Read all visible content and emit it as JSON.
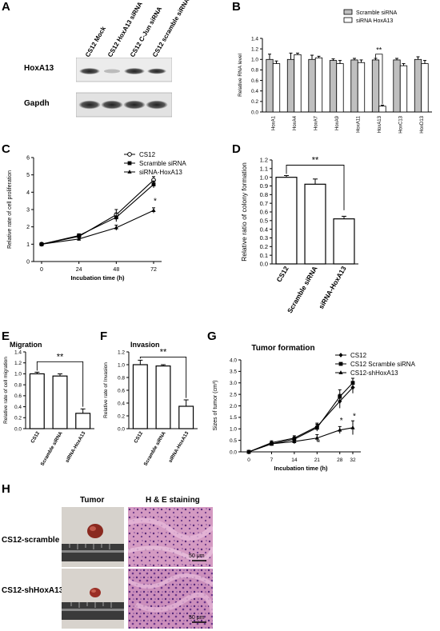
{
  "panel_letters": {
    "A": "A",
    "B": "B",
    "C": "C",
    "D": "D",
    "E": "E",
    "F": "F",
    "G": "G",
    "H": "H"
  },
  "panelA": {
    "lanes": [
      "CS12 Mock",
      "CS12 HoxA13 siRNA",
      "CS12  C-Jun siRNA",
      "CS12 scramble siRNA"
    ],
    "rows": [
      "HoxA13",
      "Gapdh"
    ]
  },
  "chart_data": [
    {
      "id": "B",
      "type": "bar",
      "title": "",
      "ylabel": "Relative RNA level",
      "xlabel": "",
      "ylim": [
        0,
        1.4
      ],
      "yticks": [
        "0.0",
        "0.2",
        "0.4",
        "0.6",
        "0.8",
        "1.0",
        "1.2",
        "1.4"
      ],
      "categories": [
        "HoxA1",
        "HoxA4",
        "HoxA7",
        "HoxA9",
        "HoxA11",
        "HoxA13",
        "HoxC13",
        "HoxD13"
      ],
      "series": [
        {
          "name": "Scramble siRNA",
          "values": [
            1.0,
            1.0,
            1.0,
            0.98,
            0.99,
            0.99,
            0.99,
            1.0
          ],
          "err": [
            0.1,
            0.12,
            0.08,
            0.03,
            0.03,
            0.03,
            0.03,
            0.05
          ],
          "color": "#bfbfbf"
        },
        {
          "name": "siRNA HoxA13",
          "values": [
            0.92,
            1.09,
            1.03,
            0.92,
            0.94,
            0.11,
            0.88,
            0.92
          ],
          "err": [
            0.05,
            0.03,
            0.03,
            0.06,
            0.05,
            0.02,
            0.04,
            0.06
          ],
          "color": "#ffffff"
        }
      ],
      "annotation": "**",
      "legend": "top-right"
    },
    {
      "id": "C",
      "type": "line",
      "ylabel": "Relative rate of cell proliferation",
      "xlabel": "Incubation time (h)",
      "x": [
        0,
        24,
        48,
        72
      ],
      "xticks": [
        "0",
        "24",
        "48",
        "72"
      ],
      "ylim": [
        0,
        6
      ],
      "yticks": [
        "0",
        "1",
        "2",
        "3",
        "4",
        "5",
        "6"
      ],
      "series": [
        {
          "name": "CS12",
          "values": [
            1.0,
            1.45,
            2.7,
            4.7
          ],
          "err": [
            0.05,
            0.1,
            0.3,
            0.2
          ],
          "marker": "circle"
        },
        {
          "name": "Scramble siRNA",
          "values": [
            1.0,
            1.5,
            2.55,
            4.45
          ],
          "err": [
            0.05,
            0.1,
            0.25,
            0.2
          ],
          "marker": "square"
        },
        {
          "name": "siRNA-HoxA13",
          "values": [
            1.0,
            1.3,
            1.95,
            2.95
          ],
          "err": [
            0.05,
            0.1,
            0.15,
            0.15
          ],
          "marker": "triangle"
        }
      ],
      "annotation": "*",
      "legend": "top-right"
    },
    {
      "id": "D",
      "type": "bar",
      "ylabel": "Relative ratio of colony formation",
      "categories": [
        "CS12",
        "Scramble siRNA",
        "siRNA-HoxA13"
      ],
      "values": [
        1.0,
        0.92,
        0.52
      ],
      "err": [
        0.02,
        0.06,
        0.03
      ],
      "ylim": [
        0,
        1.2
      ],
      "yticks": [
        "0.0",
        "0.1",
        "0.2",
        "0.3",
        "0.4",
        "0.5",
        "0.6",
        "0.7",
        "0.8",
        "0.9",
        "1.0",
        "1.1",
        "1.2"
      ],
      "annotation": "**"
    },
    {
      "id": "E",
      "type": "bar",
      "title": "Migration",
      "ylabel": "Relative rate of cell migration",
      "categories": [
        "CS12",
        "Scramble siRNA",
        "siRNA-HoxA13"
      ],
      "values": [
        1.0,
        0.96,
        0.28
      ],
      "err": [
        0.03,
        0.04,
        0.08
      ],
      "ylim": [
        0,
        1.4
      ],
      "yticks": [
        "0.0",
        "0.2",
        "0.4",
        "0.6",
        "0.8",
        "1.0",
        "1.2",
        "1.4"
      ],
      "annotation": "**"
    },
    {
      "id": "F",
      "type": "bar",
      "title": "Invasion",
      "ylabel": "Relative rate of Invasion",
      "categories": [
        "CS12",
        "Scramble siRNA",
        "siRNA-HoxA13"
      ],
      "values": [
        1.0,
        0.98,
        0.35
      ],
      "err": [
        0.07,
        0.02,
        0.1
      ],
      "ylim": [
        0,
        1.2
      ],
      "yticks": [
        "0.0",
        "0.2",
        "0.4",
        "0.6",
        "0.8",
        "1.0",
        "1.2"
      ],
      "annotation": "**"
    },
    {
      "id": "G",
      "type": "line",
      "title": "Tumor formation",
      "ylabel": "Sizes of tumor (cm³)",
      "xlabel": "Incubation time (h)",
      "x": [
        0,
        7,
        14,
        21,
        28,
        32
      ],
      "xticks": [
        "0",
        "7",
        "14",
        "21",
        "28",
        "32"
      ],
      "ylim": [
        0,
        4.0
      ],
      "yticks": [
        "0.0",
        "0.5",
        "1.0",
        "1.5",
        "2.0",
        "2.5",
        "3.0",
        "3.5",
        "4.0"
      ],
      "series": [
        {
          "name": "CS12",
          "values": [
            0.0,
            0.4,
            0.6,
            1.1,
            2.2,
            2.8
          ],
          "err": [
            0.02,
            0.08,
            0.1,
            0.15,
            0.3,
            0.25
          ],
          "marker": "diamond"
        },
        {
          "name": "CS12 Scramble siRNA",
          "values": [
            0.0,
            0.35,
            0.55,
            1.05,
            2.4,
            3.0
          ],
          "err": [
            0.02,
            0.08,
            0.1,
            0.15,
            0.3,
            0.2
          ],
          "marker": "square"
        },
        {
          "name": "CS12-shHoxA13",
          "values": [
            0.0,
            0.35,
            0.45,
            0.6,
            0.95,
            1.05
          ],
          "err": [
            0.02,
            0.08,
            0.1,
            0.15,
            0.15,
            0.3
          ],
          "marker": "triangle"
        }
      ],
      "annotation": "*",
      "legend": "top-right"
    }
  ],
  "panelH": {
    "col_tumor": "Tumor",
    "col_he": "H & E staining",
    "rows": [
      "CS12-scramble",
      "CS12-shHoxA13"
    ],
    "scale": "50 μm"
  }
}
